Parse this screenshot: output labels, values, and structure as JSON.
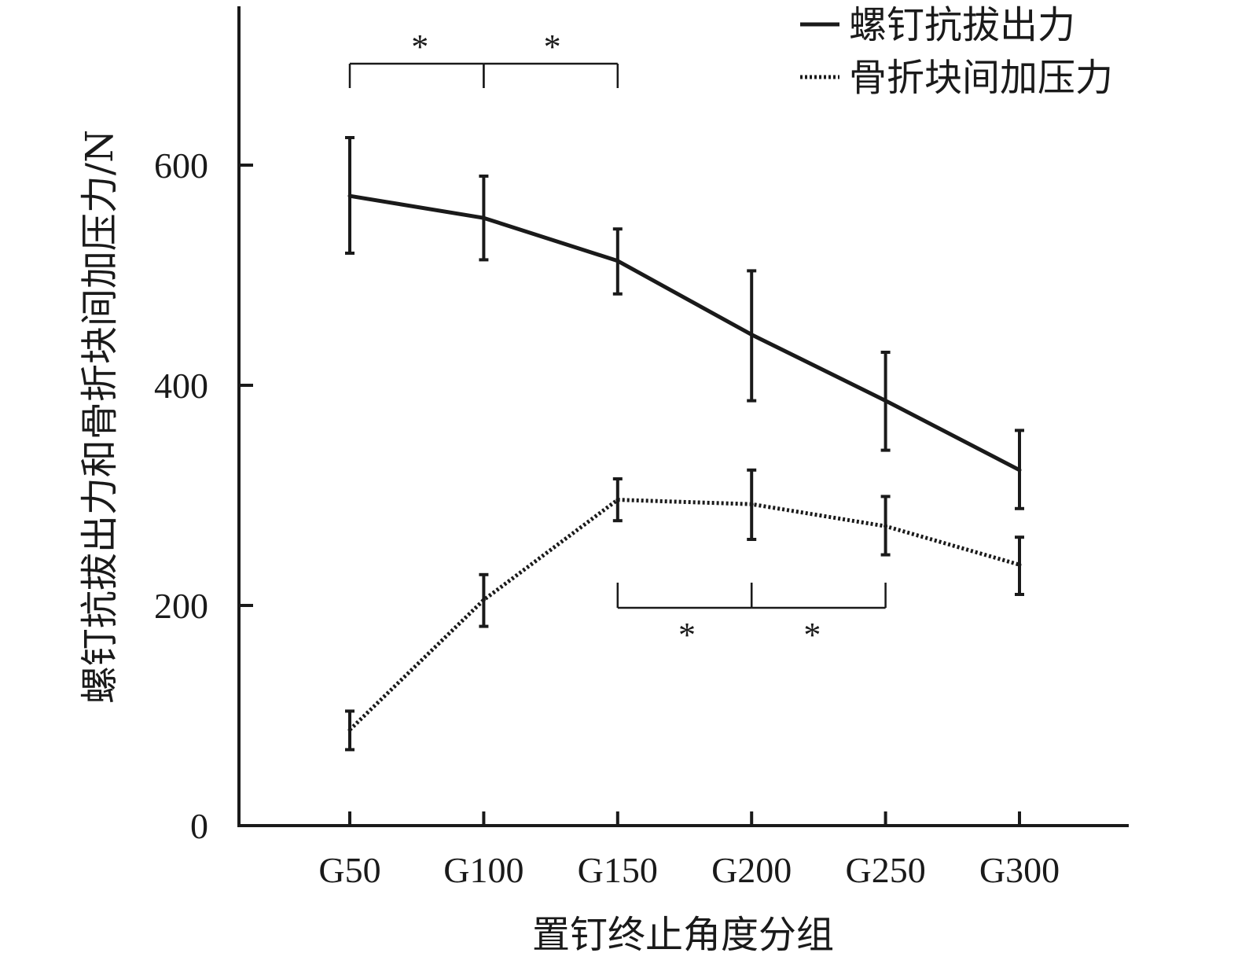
{
  "chart_data": {
    "type": "line",
    "categories": [
      "G50",
      "G100",
      "G150",
      "G200",
      "G250",
      "G300"
    ],
    "series": [
      {
        "name": "螺钉抗拔出力",
        "style": "solid",
        "values": [
          572,
          552,
          513,
          446,
          386,
          323
        ],
        "error_low": [
          520,
          514,
          483,
          386,
          341,
          288
        ],
        "error_high": [
          625,
          590,
          542,
          504,
          430,
          359
        ]
      },
      {
        "name": "骨折块间加压力",
        "style": "dotted",
        "values": [
          87,
          205,
          296,
          292,
          272,
          237
        ],
        "error_low": [
          69,
          181,
          277,
          260,
          246,
          210
        ],
        "error_high": [
          104,
          228,
          315,
          323,
          299,
          262
        ]
      }
    ],
    "xlabel": "置钉终止角度分组",
    "ylabel": "螺钉抗拔出力和骨折块间加压力/N",
    "yticks": [
      0,
      200,
      400,
      600
    ],
    "ylim": [
      0,
      750
    ],
    "grid": false,
    "legend_position": "top-right",
    "significance": [
      {
        "from": "G50",
        "to": "G100",
        "label": "*",
        "side": "above"
      },
      {
        "from": "G100",
        "to": "G150",
        "label": "*",
        "side": "above"
      },
      {
        "from": "G150",
        "to": "G200",
        "label": "*",
        "side": "below"
      },
      {
        "from": "G200",
        "to": "G250",
        "label": "*",
        "side": "below"
      }
    ],
    "colors": {
      "line": "#1a1a1a",
      "axis": "#1a1a1a"
    }
  }
}
